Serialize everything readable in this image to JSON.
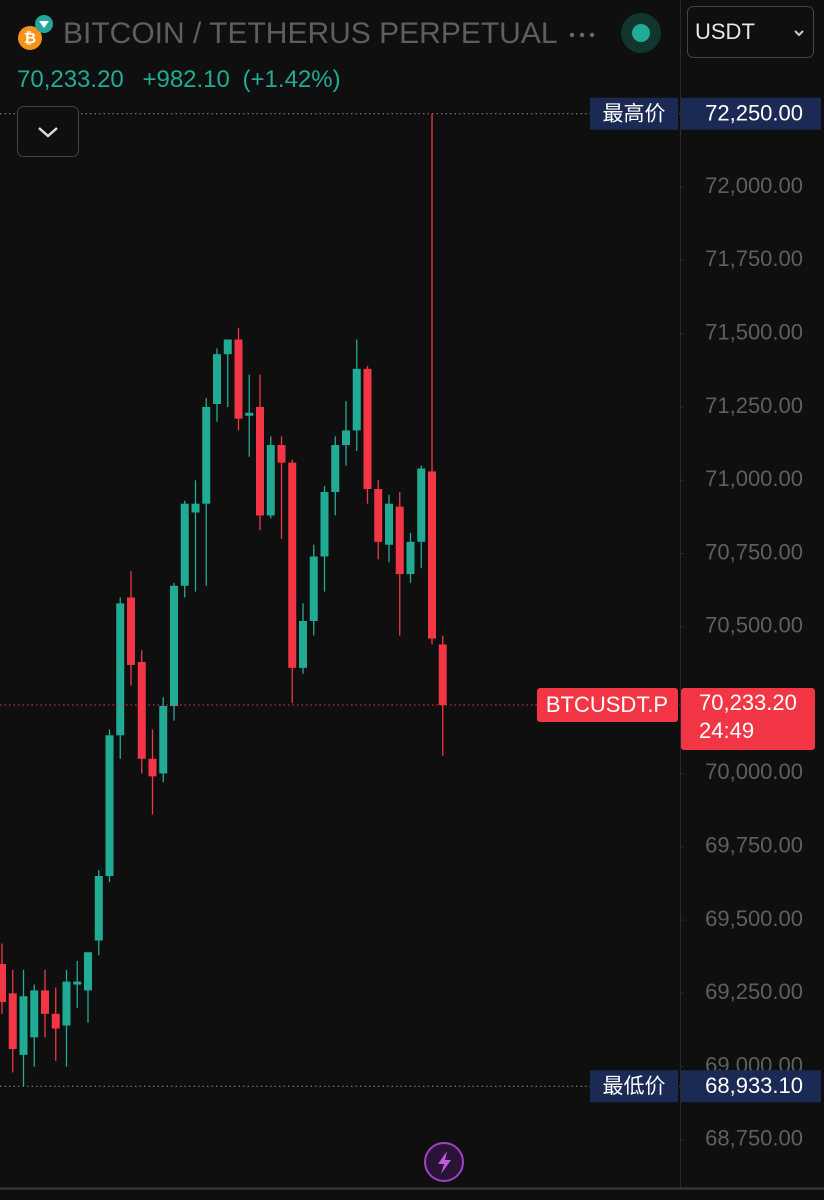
{
  "chart_data": {
    "type": "candlestick",
    "title": "BITCOIN / TETHERUS PERPETUAL",
    "currency": "USDT",
    "price": {
      "value": 70233.2,
      "label": "70,233.20"
    },
    "change": {
      "value": 982.1,
      "label": "+982.10"
    },
    "change_pct": {
      "value": 1.42,
      "label": "(+1.42%)"
    },
    "up_color": "#22ab94",
    "down_color": "#f23645",
    "series": {
      "open": [
        69350,
        69250,
        69040,
        69100,
        69260,
        69180,
        69140,
        69280,
        69260,
        69430,
        69650,
        70130,
        70600,
        70380,
        70050,
        70000,
        70230,
        70640,
        70890,
        70920,
        71260,
        71430,
        71480,
        71220,
        71250,
        70880,
        71120,
        71060,
        70360,
        70520,
        70740,
        70960,
        71120,
        71170,
        71380,
        70970,
        70780,
        70910,
        70680,
        70790,
        71030,
        70440
      ],
      "high": [
        69420,
        69330,
        69330,
        69280,
        69330,
        69270,
        69330,
        69360,
        69390,
        69670,
        70150,
        70600,
        70690,
        70420,
        70150,
        70260,
        70650,
        70930,
        71000,
        71280,
        71450,
        71480,
        71520,
        71360,
        71360,
        71150,
        71150,
        71070,
        70580,
        70780,
        70980,
        71150,
        71270,
        71480,
        71390,
        71000,
        70950,
        70960,
        70820,
        71050,
        72250,
        70470
      ],
      "low": [
        69180,
        68980,
        68933.1,
        69000,
        69100,
        69020,
        69000,
        69200,
        69150,
        69380,
        69630,
        70050,
        70300,
        70000,
        69860,
        69970,
        70180,
        70600,
        70620,
        70640,
        71200,
        71250,
        71170,
        71080,
        70830,
        70870,
        70800,
        70240,
        70340,
        70470,
        70620,
        70880,
        71050,
        71100,
        70920,
        70730,
        70720,
        70470,
        70650,
        70700,
        70440,
        70060
      ],
      "close": [
        69220,
        69060,
        69240,
        69260,
        69180,
        69130,
        69290,
        69290,
        69390,
        69650,
        70130,
        70580,
        70370,
        70050,
        69990,
        70230,
        70640,
        70920,
        70920,
        71250,
        71430,
        71480,
        71210,
        71230,
        70880,
        71120,
        71060,
        70360,
        70520,
        70740,
        70960,
        71120,
        71170,
        71380,
        70970,
        70790,
        70920,
        70680,
        70790,
        71040,
        70460,
        70233.2
      ]
    },
    "markers": [
      {
        "label": "最高价",
        "value": 72250,
        "value_label": "72,250.00",
        "color": "#1b2a55"
      },
      {
        "label": "最低价",
        "value": 68933.1,
        "value_label": "68,933.10",
        "color": "#1b2a55"
      }
    ],
    "last": {
      "label": "BTCUSDT.P",
      "value": 70233.2,
      "value_label": "70,233.20",
      "countdown": "24:49",
      "color": "#f23645"
    },
    "ylim": [
      68586,
      72638
    ],
    "yticks": [
      {
        "value": 68750,
        "label": "68,750.00"
      },
      {
        "value": 69000,
        "label": "69,000.00"
      },
      {
        "value": 69250,
        "label": "69,250.00"
      },
      {
        "value": 69500,
        "label": "69,500.00"
      },
      {
        "value": 69750,
        "label": "69,750.00"
      },
      {
        "value": 70000,
        "label": "70,000.00"
      },
      {
        "value": 70250,
        "label": "70,250.00"
      },
      {
        "value": 70500,
        "label": "70,500.00"
      },
      {
        "value": 70750,
        "label": "70,750.00"
      },
      {
        "value": 71000,
        "label": "71,000.00"
      },
      {
        "value": 71250,
        "label": "71,250.00"
      },
      {
        "value": 71500,
        "label": "71,500.00"
      },
      {
        "value": 71750,
        "label": "71,750.00"
      },
      {
        "value": 72000,
        "label": "72,000.00"
      }
    ]
  }
}
